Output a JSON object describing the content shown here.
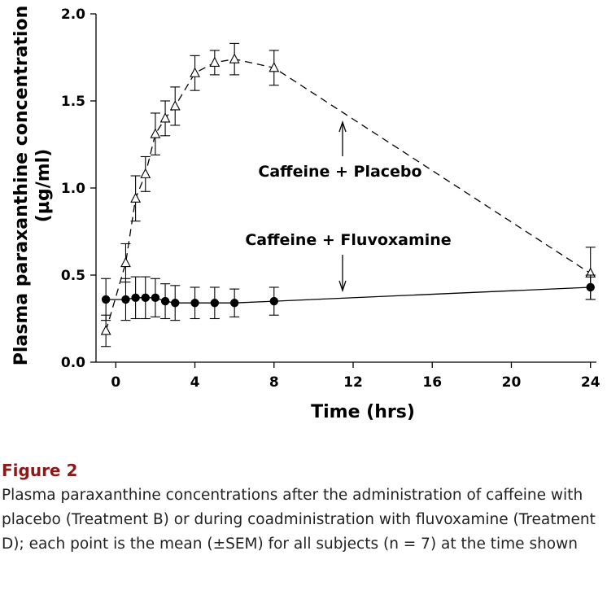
{
  "chart_data": {
    "type": "line",
    "xlabel": "Time (hrs)",
    "ylabel_line1": "Plasma paraxanthine concentration",
    "ylabel_line2": "(µg/ml)",
    "xlim": [
      -1,
      24.3
    ],
    "ylim": [
      0,
      2.0
    ],
    "x_ticks": [
      0,
      4,
      8,
      12,
      16,
      20,
      24
    ],
    "y_ticks": [
      0.0,
      0.5,
      1.0,
      1.5,
      2.0
    ],
    "y_tick_labels": [
      "0.0",
      "0.5",
      "1.0",
      "1.5",
      "2.0"
    ],
    "series": [
      {
        "label": "Caffeine + Placebo",
        "marker": "open-triangle",
        "line": "dashed",
        "x": [
          -0.5,
          0.5,
          1,
          1.5,
          2,
          2.5,
          3,
          4,
          5,
          6,
          8,
          24
        ],
        "y": [
          0.18,
          0.57,
          0.94,
          1.08,
          1.31,
          1.4,
          1.47,
          1.66,
          1.72,
          1.74,
          1.69,
          0.51
        ],
        "err": [
          0.09,
          0.11,
          0.13,
          0.1,
          0.12,
          0.1,
          0.11,
          0.1,
          0.07,
          0.09,
          0.1,
          0.15
        ]
      },
      {
        "label": "Caffeine + Fluvoxamine",
        "marker": "filled-circle",
        "line": "solid",
        "x": [
          -0.5,
          0.5,
          1,
          1.5,
          2,
          2.5,
          3,
          4,
          5,
          6,
          8,
          24
        ],
        "y": [
          0.36,
          0.36,
          0.37,
          0.37,
          0.37,
          0.35,
          0.34,
          0.34,
          0.34,
          0.34,
          0.35,
          0.43
        ],
        "err": [
          0.12,
          0.12,
          0.12,
          0.12,
          0.11,
          0.1,
          0.1,
          0.09,
          0.09,
          0.08,
          0.08,
          0.07
        ]
      }
    ]
  },
  "caption": {
    "label": "Figure 2",
    "text": "Plasma paraxanthine concentrations after the administration of caffeine with placebo (Treatment B) or during coadministration with fluvoxamine (Treatment D); each point is the mean (±SEM) for all subjects (n = 7) at the time shown"
  }
}
